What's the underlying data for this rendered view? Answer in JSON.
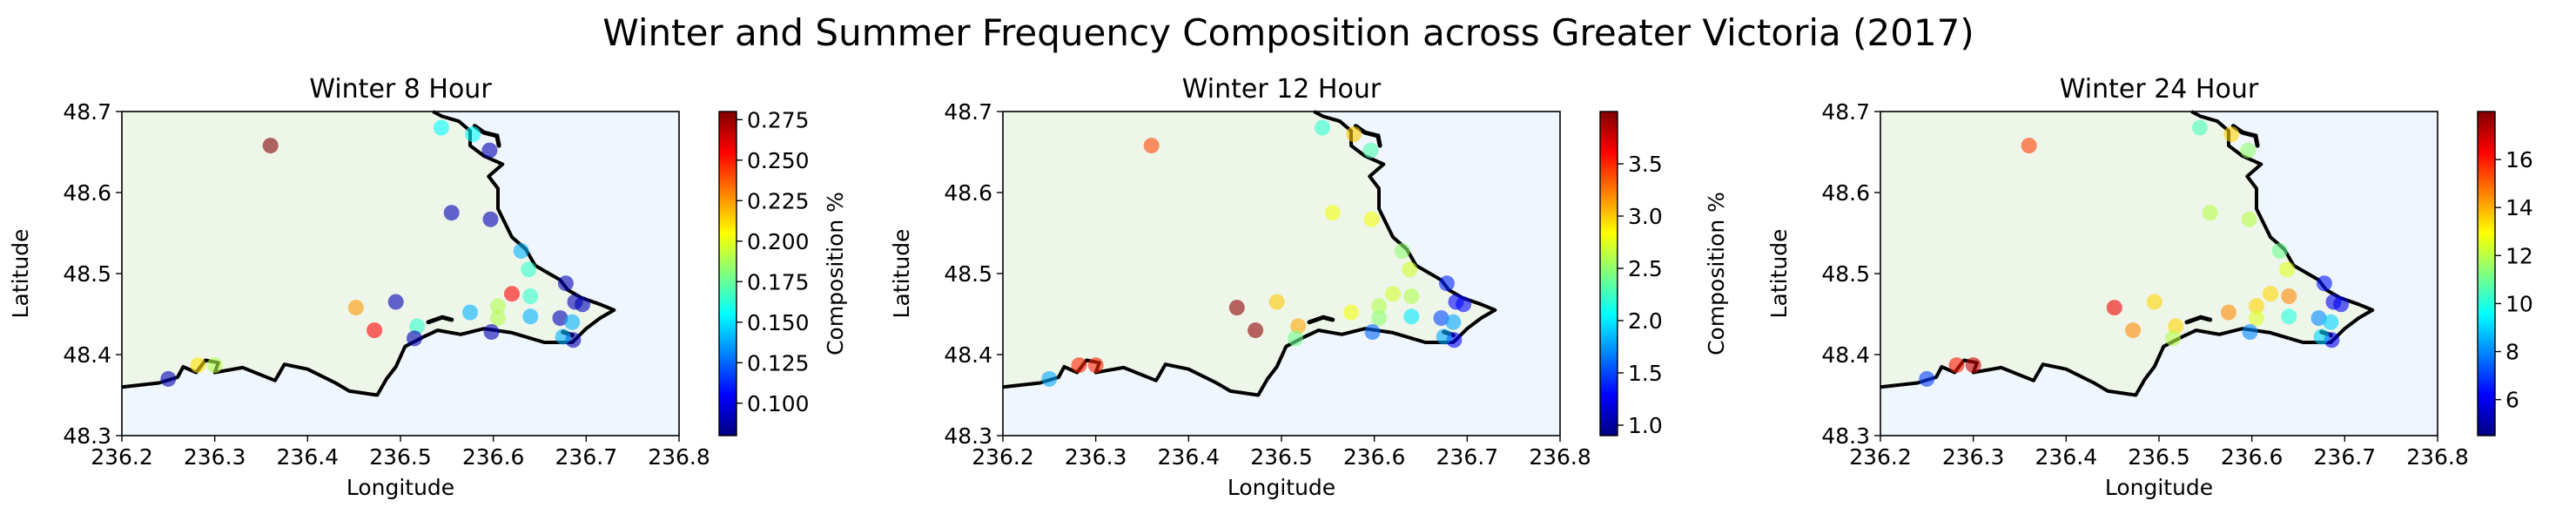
{
  "figure": {
    "title": "Winter and Summer Frequency Composition across Greater Victoria (2017)"
  },
  "style": {
    "land_color": "#eef6ea",
    "water_color": "#f0f6fd",
    "coast_color": "#000000",
    "colormap": "jet",
    "marker_alpha": 0.6
  },
  "chart_data": [
    {
      "type": "scatter",
      "title": "Winter 8 Hour",
      "xlabel": "Longitude",
      "ylabel": "Latitude",
      "xlim": [
        236.2,
        236.8
      ],
      "ylim": [
        48.3,
        48.7
      ],
      "xticks": [
        "236.2",
        "236.3",
        "236.4",
        "236.5",
        "236.6",
        "236.7",
        "236.8"
      ],
      "yticks": [
        "48.3",
        "48.4",
        "48.5",
        "48.6",
        "48.7"
      ],
      "colorbar": {
        "label": "Composition %",
        "range": [
          0.08,
          0.28
        ],
        "ticks": [
          "0.100",
          "0.125",
          "0.150",
          "0.175",
          "0.200",
          "0.225",
          "0.250",
          "0.275"
        ],
        "tick_values": [
          0.1,
          0.125,
          0.15,
          0.175,
          0.2,
          0.225,
          0.25,
          0.275
        ]
      },
      "points": [
        {
          "lon": 236.36,
          "lat": 48.658,
          "value": 0.28
        },
        {
          "lon": 236.544,
          "lat": 48.68,
          "value": 0.155
        },
        {
          "lon": 236.578,
          "lat": 48.672,
          "value": 0.155
        },
        {
          "lon": 236.596,
          "lat": 48.652,
          "value": 0.09
        },
        {
          "lon": 236.555,
          "lat": 48.575,
          "value": 0.09
        },
        {
          "lon": 236.597,
          "lat": 48.567,
          "value": 0.09
        },
        {
          "lon": 236.63,
          "lat": 48.528,
          "value": 0.14
        },
        {
          "lon": 236.638,
          "lat": 48.505,
          "value": 0.165
        },
        {
          "lon": 236.678,
          "lat": 48.488,
          "value": 0.09
        },
        {
          "lon": 236.688,
          "lat": 48.465,
          "value": 0.09
        },
        {
          "lon": 236.696,
          "lat": 48.462,
          "value": 0.09
        },
        {
          "lon": 236.64,
          "lat": 48.472,
          "value": 0.165
        },
        {
          "lon": 236.62,
          "lat": 48.475,
          "value": 0.255
        },
        {
          "lon": 236.605,
          "lat": 48.46,
          "value": 0.19
        },
        {
          "lon": 236.605,
          "lat": 48.445,
          "value": 0.19
        },
        {
          "lon": 236.64,
          "lat": 48.447,
          "value": 0.14
        },
        {
          "lon": 236.672,
          "lat": 48.445,
          "value": 0.09
        },
        {
          "lon": 236.685,
          "lat": 48.44,
          "value": 0.14
        },
        {
          "lon": 236.686,
          "lat": 48.418,
          "value": 0.09
        },
        {
          "lon": 236.675,
          "lat": 48.422,
          "value": 0.14
        },
        {
          "lon": 236.598,
          "lat": 48.428,
          "value": 0.09
        },
        {
          "lon": 236.575,
          "lat": 48.452,
          "value": 0.14
        },
        {
          "lon": 236.518,
          "lat": 48.435,
          "value": 0.165
        },
        {
          "lon": 236.515,
          "lat": 48.42,
          "value": 0.09
        },
        {
          "lon": 236.495,
          "lat": 48.465,
          "value": 0.09
        },
        {
          "lon": 236.452,
          "lat": 48.458,
          "value": 0.225
        },
        {
          "lon": 236.472,
          "lat": 48.43,
          "value": 0.255
        },
        {
          "lon": 236.282,
          "lat": 48.387,
          "value": 0.21
        },
        {
          "lon": 236.3,
          "lat": 48.387,
          "value": 0.19
        },
        {
          "lon": 236.25,
          "lat": 48.37,
          "value": 0.09
        }
      ]
    },
    {
      "type": "scatter",
      "title": "Winter 12 Hour",
      "xlabel": "Longitude",
      "ylabel": "Latitude",
      "xlim": [
        236.2,
        236.8
      ],
      "ylim": [
        48.3,
        48.7
      ],
      "xticks": [
        "236.2",
        "236.3",
        "236.4",
        "236.5",
        "236.6",
        "236.7",
        "236.8"
      ],
      "yticks": [
        "48.3",
        "48.4",
        "48.5",
        "48.6",
        "48.7"
      ],
      "colorbar": {
        "label": "Composition %",
        "range": [
          0.9,
          4.0
        ],
        "ticks": [
          "1.0",
          "1.5",
          "2.0",
          "2.5",
          "3.0",
          "3.5"
        ],
        "tick_values": [
          1.0,
          1.5,
          2.0,
          2.5,
          3.0,
          3.5
        ]
      },
      "points": [
        {
          "lon": 236.36,
          "lat": 48.658,
          "value": 3.4
        },
        {
          "lon": 236.544,
          "lat": 48.68,
          "value": 2.2
        },
        {
          "lon": 236.578,
          "lat": 48.672,
          "value": 3.0
        },
        {
          "lon": 236.596,
          "lat": 48.652,
          "value": 2.3
        },
        {
          "lon": 236.555,
          "lat": 48.575,
          "value": 2.8
        },
        {
          "lon": 236.597,
          "lat": 48.567,
          "value": 2.8
        },
        {
          "lon": 236.63,
          "lat": 48.528,
          "value": 2.5
        },
        {
          "lon": 236.638,
          "lat": 48.505,
          "value": 2.7
        },
        {
          "lon": 236.678,
          "lat": 48.488,
          "value": 1.4
        },
        {
          "lon": 236.688,
          "lat": 48.465,
          "value": 1.3
        },
        {
          "lon": 236.696,
          "lat": 48.462,
          "value": 1.3
        },
        {
          "lon": 236.64,
          "lat": 48.472,
          "value": 2.6
        },
        {
          "lon": 236.62,
          "lat": 48.475,
          "value": 2.7
        },
        {
          "lon": 236.605,
          "lat": 48.46,
          "value": 2.6
        },
        {
          "lon": 236.605,
          "lat": 48.445,
          "value": 2.5
        },
        {
          "lon": 236.64,
          "lat": 48.447,
          "value": 2.0
        },
        {
          "lon": 236.672,
          "lat": 48.445,
          "value": 1.5
        },
        {
          "lon": 236.685,
          "lat": 48.44,
          "value": 1.8
        },
        {
          "lon": 236.686,
          "lat": 48.418,
          "value": 1.3
        },
        {
          "lon": 236.675,
          "lat": 48.422,
          "value": 1.8
        },
        {
          "lon": 236.598,
          "lat": 48.428,
          "value": 1.6
        },
        {
          "lon": 236.575,
          "lat": 48.452,
          "value": 2.8
        },
        {
          "lon": 236.518,
          "lat": 48.435,
          "value": 3.1
        },
        {
          "lon": 236.515,
          "lat": 48.42,
          "value": 2.4
        },
        {
          "lon": 236.495,
          "lat": 48.465,
          "value": 3.0
        },
        {
          "lon": 236.452,
          "lat": 48.458,
          "value": 3.95
        },
        {
          "lon": 236.472,
          "lat": 48.43,
          "value": 3.95
        },
        {
          "lon": 236.282,
          "lat": 48.387,
          "value": 3.5
        },
        {
          "lon": 236.3,
          "lat": 48.387,
          "value": 3.5
        },
        {
          "lon": 236.25,
          "lat": 48.37,
          "value": 1.8
        }
      ]
    },
    {
      "type": "scatter",
      "title": "Winter 24 Hour",
      "xlabel": "Longitude",
      "ylabel": "Latitude",
      "xlim": [
        236.2,
        236.8
      ],
      "ylim": [
        48.3,
        48.7
      ],
      "xticks": [
        "236.2",
        "236.3",
        "236.4",
        "236.5",
        "236.6",
        "236.7",
        "236.8"
      ],
      "yticks": [
        "48.3",
        "48.4",
        "48.5",
        "48.6",
        "48.7"
      ],
      "colorbar": {
        "label": "Composition %",
        "range": [
          4.5,
          18.0
        ],
        "ticks": [
          "6",
          "8",
          "10",
          "12",
          "14",
          "16"
        ],
        "tick_values": [
          6,
          8,
          10,
          12,
          14,
          16
        ]
      },
      "points": [
        {
          "lon": 236.36,
          "lat": 48.658,
          "value": 15.5
        },
        {
          "lon": 236.544,
          "lat": 48.68,
          "value": 10.5
        },
        {
          "lon": 236.578,
          "lat": 48.672,
          "value": 13.5
        },
        {
          "lon": 236.596,
          "lat": 48.652,
          "value": 11.5
        },
        {
          "lon": 236.555,
          "lat": 48.575,
          "value": 12.0
        },
        {
          "lon": 236.597,
          "lat": 48.567,
          "value": 12.0
        },
        {
          "lon": 236.63,
          "lat": 48.528,
          "value": 11.0
        },
        {
          "lon": 236.638,
          "lat": 48.505,
          "value": 12.5
        },
        {
          "lon": 236.678,
          "lat": 48.488,
          "value": 6.5
        },
        {
          "lon": 236.688,
          "lat": 48.465,
          "value": 6.0
        },
        {
          "lon": 236.696,
          "lat": 48.462,
          "value": 6.0
        },
        {
          "lon": 236.64,
          "lat": 48.472,
          "value": 14.5
        },
        {
          "lon": 236.62,
          "lat": 48.475,
          "value": 13.5
        },
        {
          "lon": 236.605,
          "lat": 48.46,
          "value": 13.5
        },
        {
          "lon": 236.605,
          "lat": 48.445,
          "value": 12.5
        },
        {
          "lon": 236.64,
          "lat": 48.447,
          "value": 10.0
        },
        {
          "lon": 236.672,
          "lat": 48.445,
          "value": 8.0
        },
        {
          "lon": 236.685,
          "lat": 48.44,
          "value": 9.0
        },
        {
          "lon": 236.686,
          "lat": 48.418,
          "value": 6.0
        },
        {
          "lon": 236.675,
          "lat": 48.422,
          "value": 9.0
        },
        {
          "lon": 236.598,
          "lat": 48.428,
          "value": 8.0
        },
        {
          "lon": 236.575,
          "lat": 48.452,
          "value": 14.5
        },
        {
          "lon": 236.518,
          "lat": 48.435,
          "value": 13.5
        },
        {
          "lon": 236.515,
          "lat": 48.42,
          "value": 12.0
        },
        {
          "lon": 236.495,
          "lat": 48.465,
          "value": 13.5
        },
        {
          "lon": 236.452,
          "lat": 48.458,
          "value": 16.5
        },
        {
          "lon": 236.472,
          "lat": 48.43,
          "value": 14.5
        },
        {
          "lon": 236.282,
          "lat": 48.387,
          "value": 16.0
        },
        {
          "lon": 236.3,
          "lat": 48.387,
          "value": 17.0
        },
        {
          "lon": 236.25,
          "lat": 48.37,
          "value": 7.0
        }
      ]
    }
  ]
}
